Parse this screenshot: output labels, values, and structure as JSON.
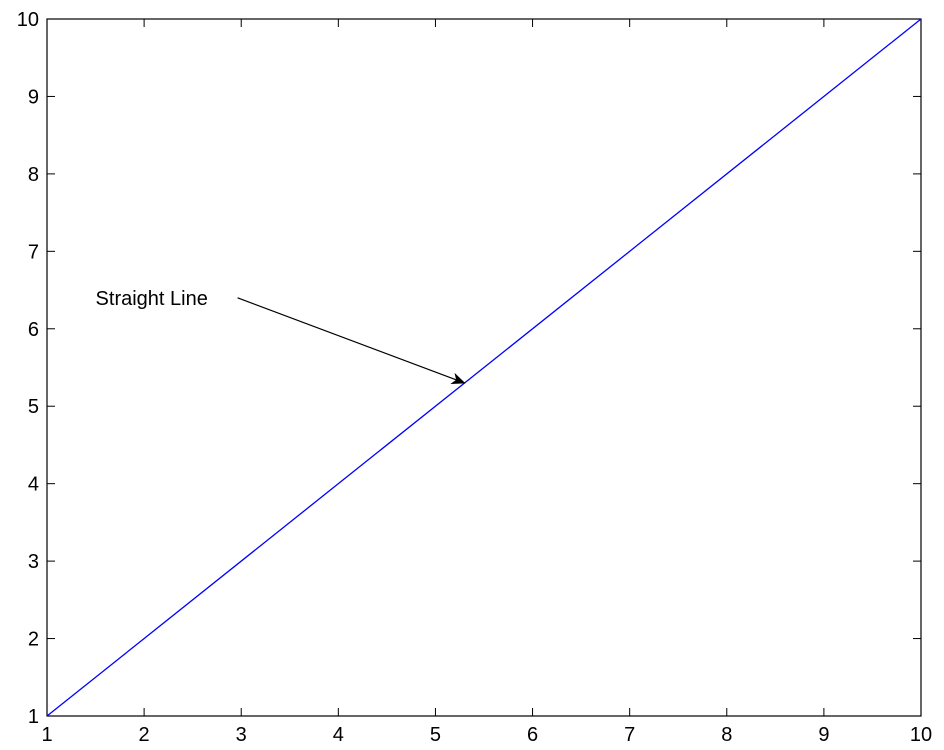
{
  "chart_data": {
    "type": "line",
    "title": "",
    "xlabel": "",
    "ylabel": "",
    "xlim": [
      1,
      10
    ],
    "ylim": [
      1,
      10
    ],
    "xticks": [
      1,
      2,
      3,
      4,
      5,
      6,
      7,
      8,
      9,
      10
    ],
    "yticks": [
      1,
      2,
      3,
      4,
      5,
      6,
      7,
      8,
      9,
      10
    ],
    "xtick_labels": [
      "1",
      "2",
      "3",
      "4",
      "5",
      "6",
      "7",
      "8",
      "9",
      "10"
    ],
    "ytick_labels": [
      "1",
      "2",
      "3",
      "4",
      "5",
      "6",
      "7",
      "8",
      "9",
      "10"
    ],
    "grid": false,
    "series": [
      {
        "x": [
          1,
          10
        ],
        "y": [
          1,
          10
        ],
        "color": "#0000ff"
      }
    ],
    "annotations": [
      {
        "text": "Straight Line",
        "text_at": [
          1.5,
          6.4
        ],
        "arrow_to": [
          5.3,
          5.3
        ]
      }
    ]
  },
  "colors": {
    "axes": "#000000",
    "background": "#ffffff",
    "line": "#0000ff"
  }
}
